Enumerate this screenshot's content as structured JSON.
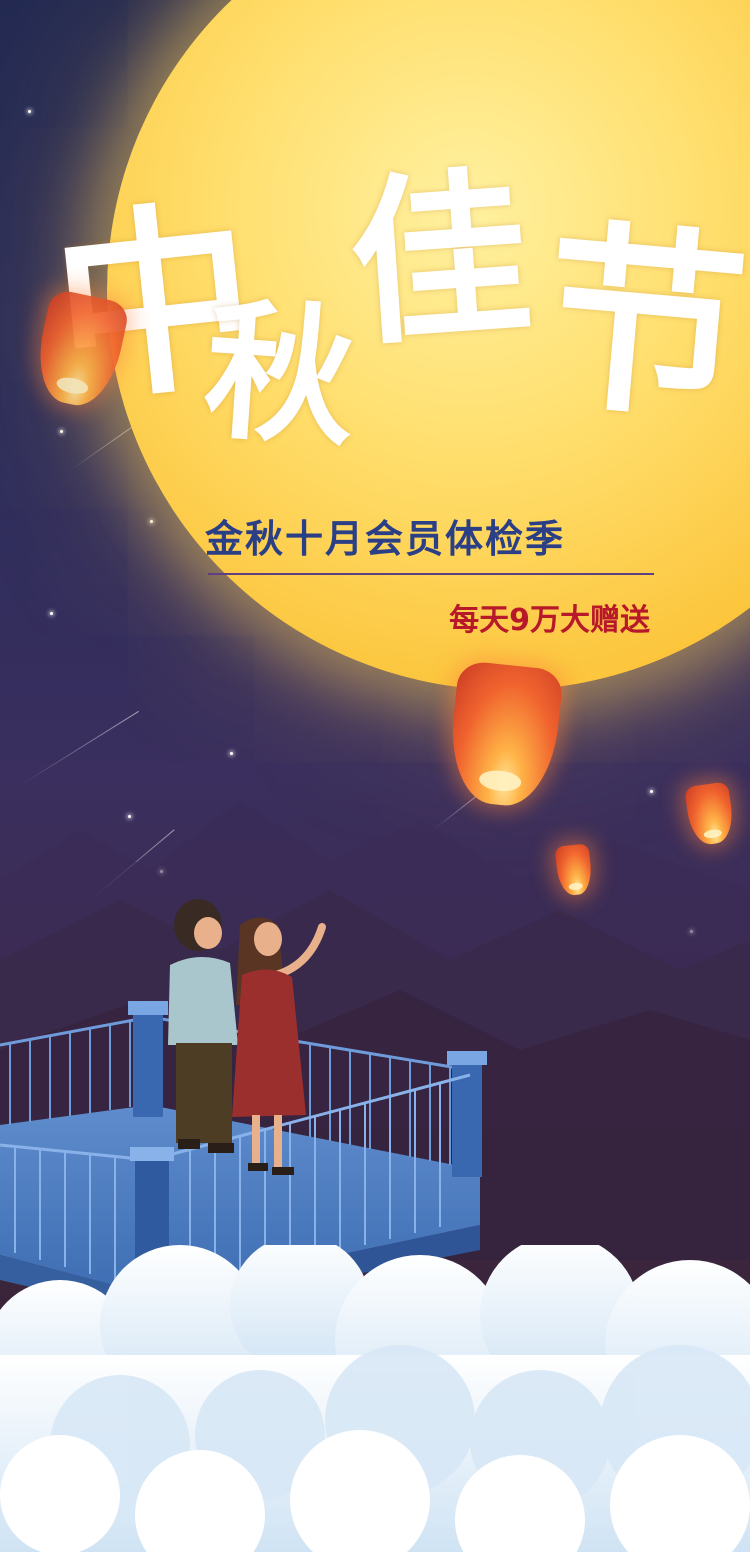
{
  "title": {
    "chars": [
      "中",
      "秋",
      "佳",
      "节"
    ]
  },
  "subtitle": "金秋十月会员体检季",
  "slogan": "每天9万大赠送",
  "colors": {
    "sky_top": "#232a52",
    "sky_bottom": "#2e1f30",
    "moon": "#fcc53c",
    "subtitle": "#2b3f86",
    "slogan": "#b8192a",
    "railing": "#4a7ec9"
  },
  "icons": [
    "moon",
    "sky-lantern",
    "star",
    "couple",
    "railing",
    "cloud"
  ]
}
